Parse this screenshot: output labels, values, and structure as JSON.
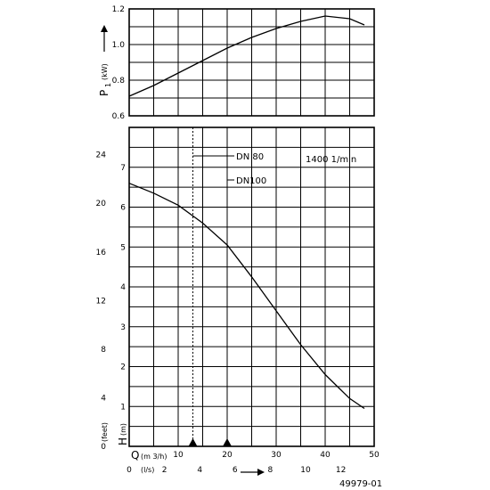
{
  "chart_data": [
    {
      "type": "line",
      "ylabel_symbol": "P",
      "ylabel_subscript": "1",
      "ylabel_unit": "(kW)",
      "xlim": [
        0,
        50
      ],
      "ylim": [
        0.6,
        1.2
      ],
      "yticks": [
        "0.6",
        "0.8",
        "1.0",
        "1.2"
      ],
      "series": [
        {
          "x": [
            0,
            5,
            10,
            15,
            20,
            25,
            30,
            35,
            40,
            45,
            48
          ],
          "y": [
            0.71,
            0.77,
            0.84,
            0.91,
            0.98,
            1.04,
            1.09,
            1.13,
            1.16,
            1.145,
            1.11
          ]
        }
      ]
    },
    {
      "type": "line",
      "ylabel_symbol": "H",
      "ylabel_unit": "(m)",
      "ylabel2": "(feet)",
      "xlim": [
        0,
        50
      ],
      "ylim": [
        0,
        8
      ],
      "yticks": [
        "1",
        "2",
        "3",
        "4",
        "5",
        "6",
        "7"
      ],
      "yticks_feet": [
        "0",
        "4",
        "8",
        "12",
        "16",
        "20",
        "24"
      ],
      "xlabel_symbol": "Q",
      "xlabel_unit": "(m 3/h)",
      "xlabel2": "(l/s)",
      "xticks_m3h": [
        "10",
        "20",
        "30",
        "40",
        "50"
      ],
      "xticks_ls": [
        "0",
        "2",
        "4",
        "6",
        "8",
        "10",
        "12"
      ],
      "series": [
        {
          "x": [
            0,
            5,
            10,
            15,
            20,
            25,
            30,
            35,
            40,
            45,
            48
          ],
          "y": [
            6.6,
            6.35,
            6.05,
            5.6,
            5.05,
            4.25,
            3.4,
            2.55,
            1.8,
            1.2,
            0.95
          ]
        }
      ],
      "markers": [
        {
          "label": "DN 80",
          "x": 13
        },
        {
          "label": "DN100",
          "x": 20
        }
      ],
      "annotation": "1400 1/min"
    }
  ],
  "figure_id": "49979-01"
}
